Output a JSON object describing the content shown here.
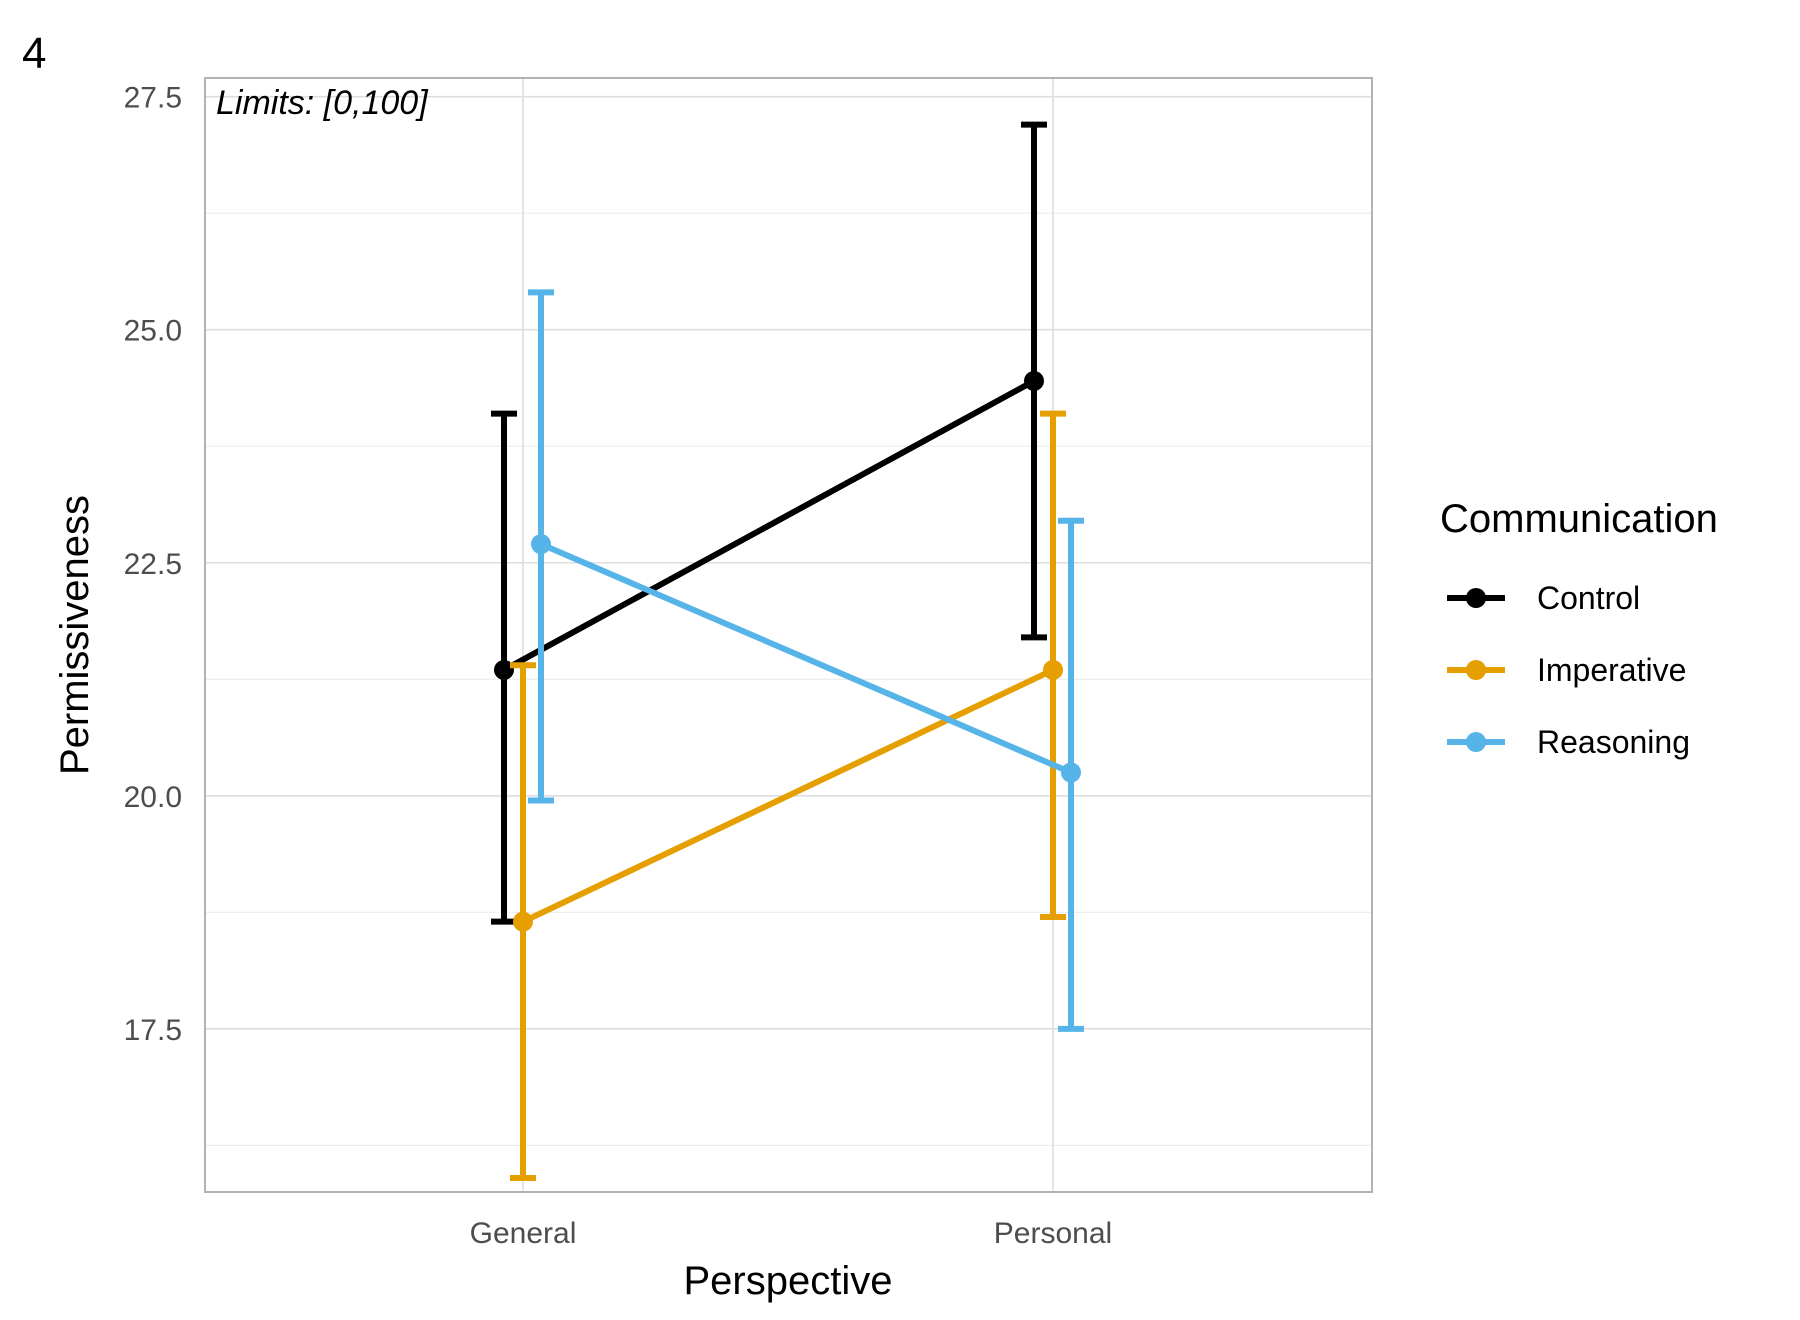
{
  "panel_tag": "4",
  "chart_data": {
    "type": "line",
    "title": "",
    "annotation": "Limits: [0,100]",
    "xlabel": "Perspective",
    "ylabel": "Permissiveness",
    "categories": [
      "General",
      "Personal"
    ],
    "ylim": [
      15.75,
      27.7
    ],
    "yticks": [
      17.5,
      20.0,
      22.5,
      25.0,
      27.5
    ],
    "ytick_labels": [
      "17.5",
      "20.0",
      "22.5",
      "25.0",
      "27.5"
    ],
    "grid": true,
    "legend": {
      "title": "Communication",
      "position": "right"
    },
    "series": [
      {
        "name": "Control",
        "color": "#000000",
        "values": [
          21.35,
          24.45
        ],
        "lower": [
          18.65,
          21.7
        ],
        "upper": [
          24.1,
          27.2
        ]
      },
      {
        "name": "Imperative",
        "color": "#E69F00",
        "values": [
          18.65,
          21.35
        ],
        "lower": [
          15.9,
          18.7
        ],
        "upper": [
          21.4,
          24.1
        ]
      },
      {
        "name": "Reasoning",
        "color": "#56B4E9",
        "values": [
          22.7,
          20.25
        ],
        "lower": [
          19.95,
          17.5
        ],
        "upper": [
          25.4,
          22.95
        ]
      }
    ]
  }
}
